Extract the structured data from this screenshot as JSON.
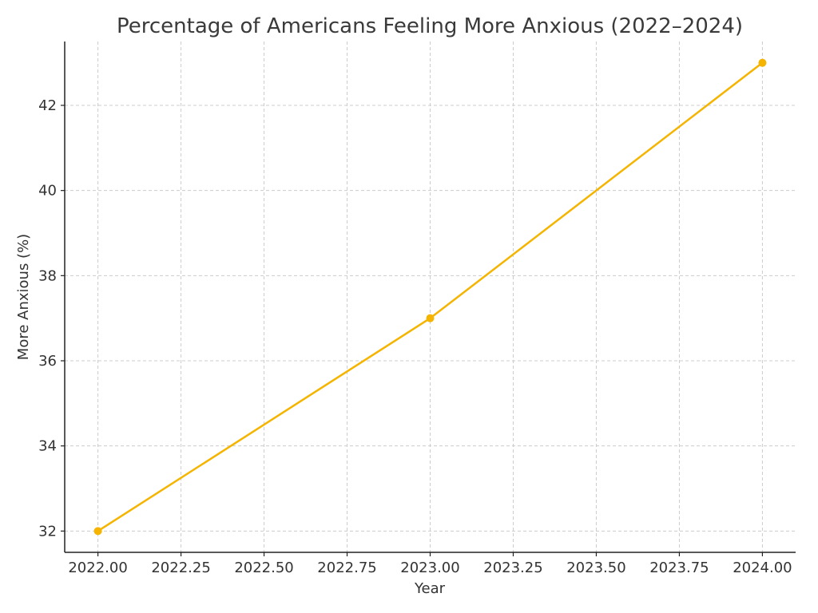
{
  "chart_data": {
    "type": "line",
    "title": "Percentage of Americans Feeling More Anxious (2022–2024)",
    "xlabel": "Year",
    "ylabel": "More Anxious (%)",
    "x": [
      2022,
      2023,
      2024
    ],
    "series": [
      {
        "values": [
          32,
          37,
          43
        ],
        "color": "#f5b400"
      }
    ],
    "xlim": [
      2021.9,
      2024.1
    ],
    "ylim": [
      31.5,
      43.5
    ],
    "x_ticks": [
      2022.0,
      2022.25,
      2022.5,
      2022.75,
      2023.0,
      2023.25,
      2023.5,
      2023.75,
      2024.0
    ],
    "x_tick_labels": [
      "2022.00",
      "2022.25",
      "2022.50",
      "2022.75",
      "2023.00",
      "2023.25",
      "2023.50",
      "2023.75",
      "2024.00"
    ],
    "y_ticks": [
      32,
      34,
      36,
      38,
      40,
      42
    ],
    "y_tick_labels": [
      "32",
      "34",
      "36",
      "38",
      "40",
      "42"
    ],
    "grid": true,
    "markers": true
  }
}
